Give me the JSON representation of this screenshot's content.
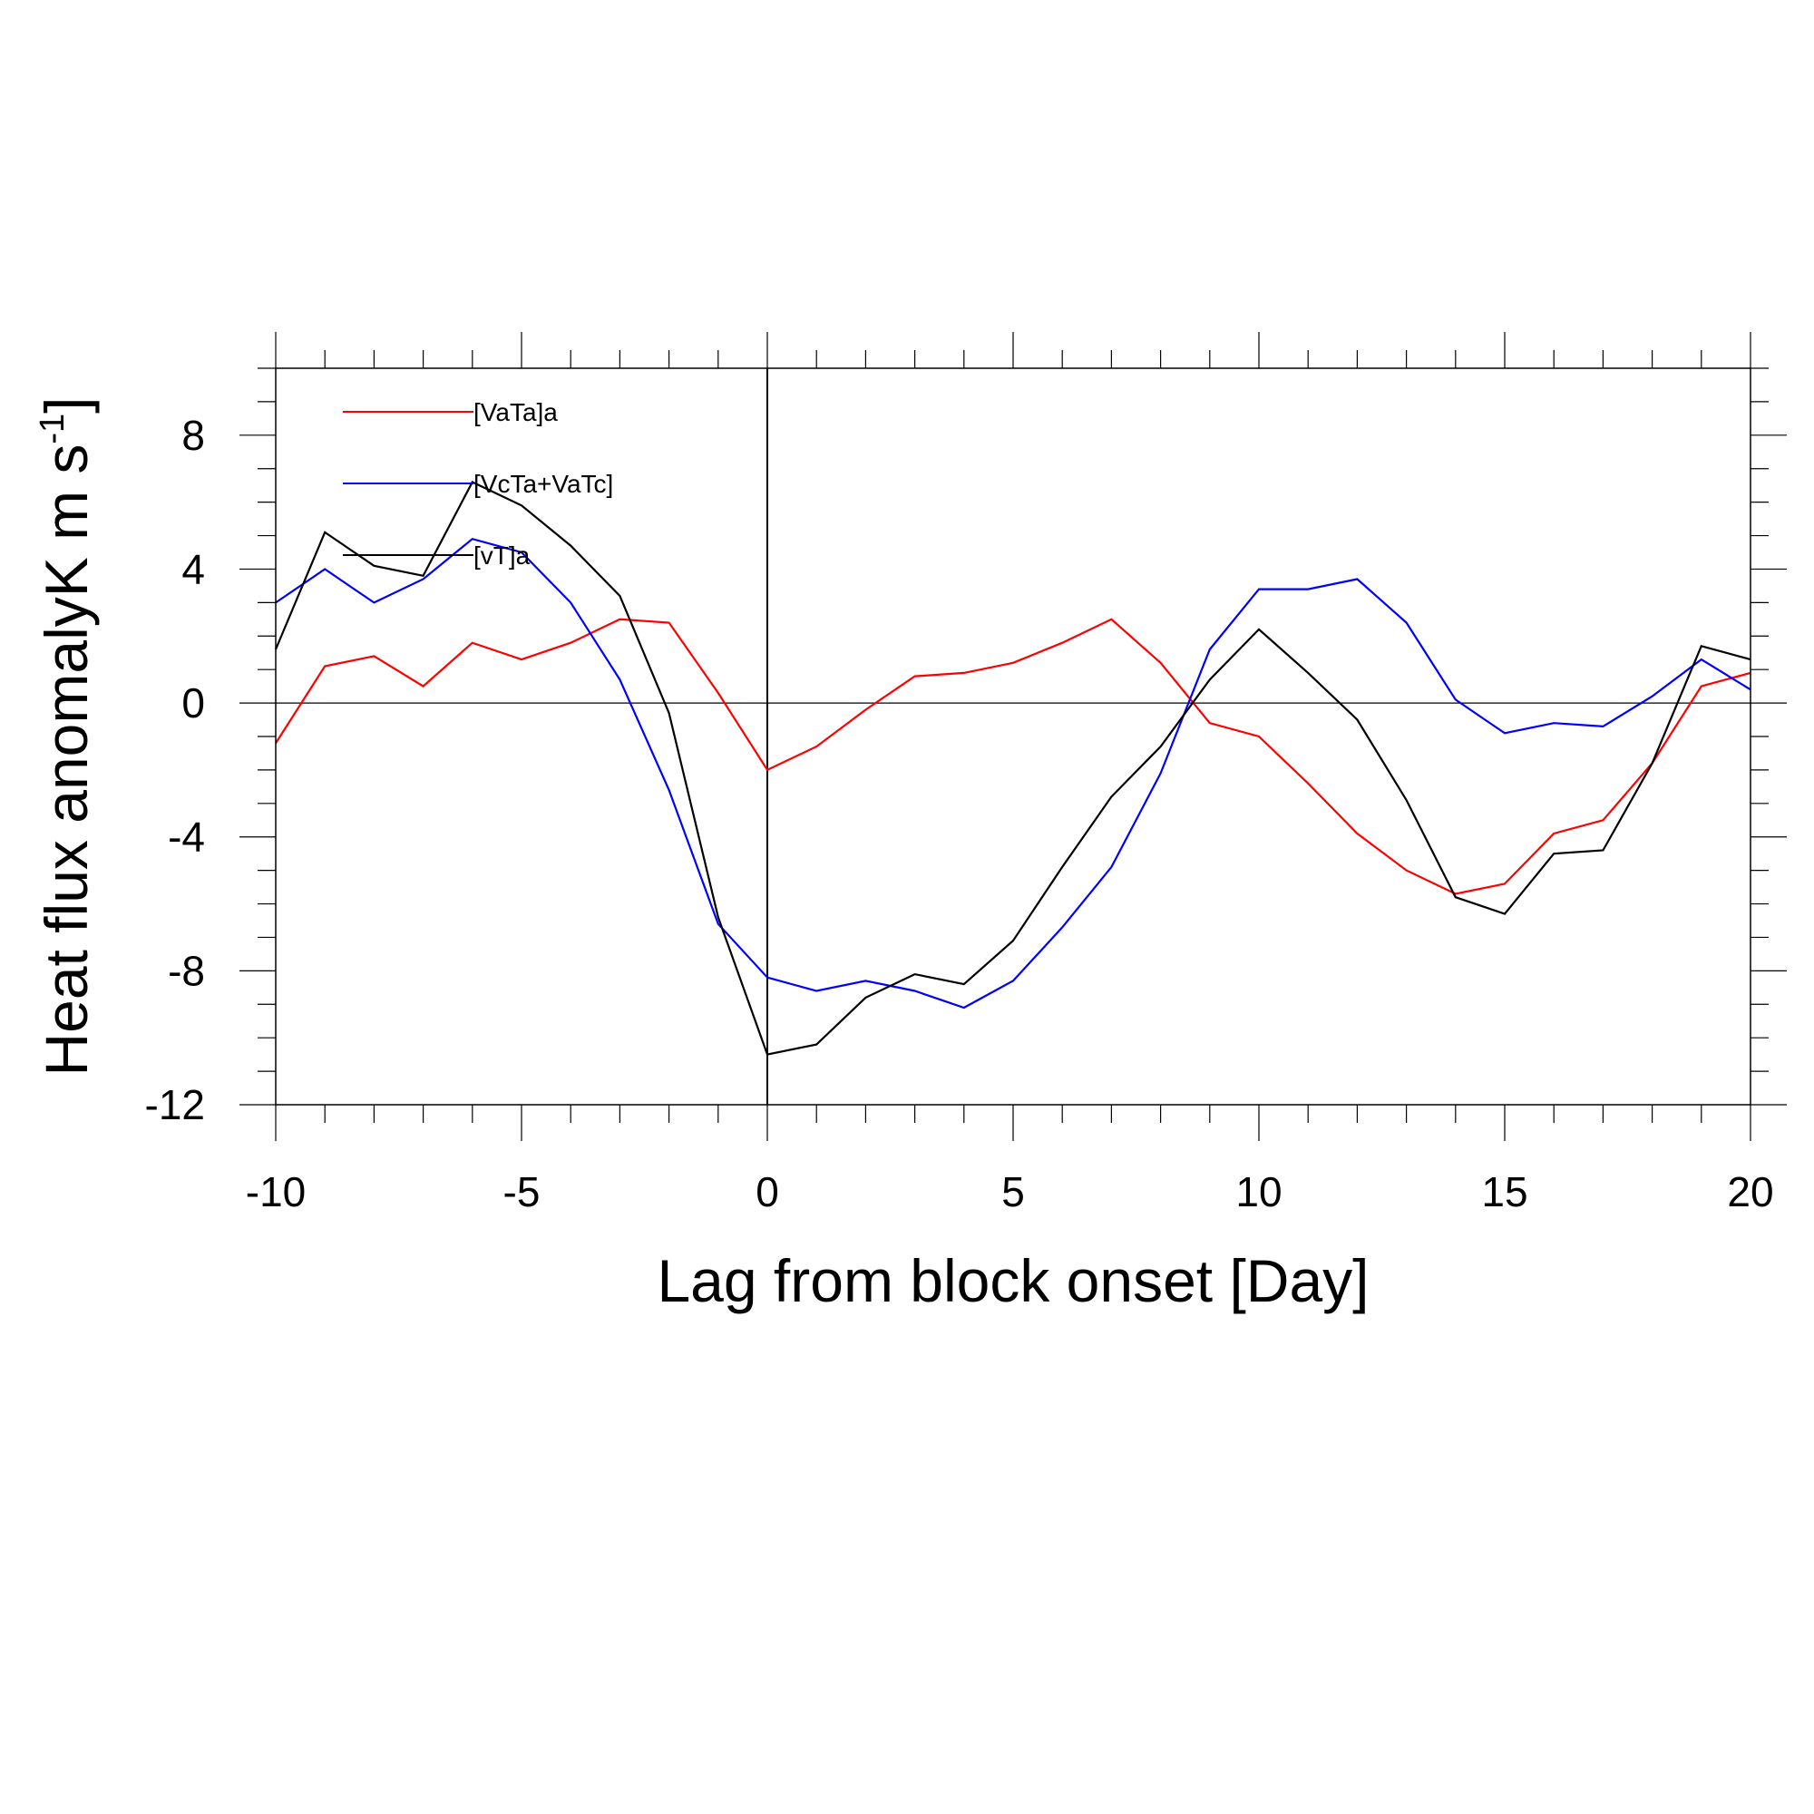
{
  "chart_data": {
    "type": "line",
    "title": "",
    "xlabel": "Lag from block onset [Day]",
    "ylabel": {
      "main": "Heat flux anomalyK m s",
      "superscript": "-1",
      "closing": "]"
    },
    "xlim": [
      -10,
      20
    ],
    "ylim": [
      -12,
      10
    ],
    "xticks": [
      -10,
      -5,
      0,
      5,
      10,
      15,
      20
    ],
    "yticks": [
      -12,
      -8,
      -4,
      0,
      4,
      8
    ],
    "x_minor_step": 1,
    "y_minor_step": 1,
    "grid": false,
    "zero_line": true,
    "vertical_line_x": 0,
    "legend_position": "top-left",
    "x": [
      -10,
      -9,
      -8,
      -7,
      -6,
      -5,
      -4,
      -3,
      -2,
      -1,
      0,
      1,
      2,
      3,
      4,
      5,
      6,
      7,
      8,
      9,
      10,
      11,
      12,
      13,
      14,
      15,
      16,
      17,
      18,
      19,
      20
    ],
    "series": [
      {
        "name": "[VaTa]a",
        "color": "#ff0000",
        "values": [
          -1.2,
          1.1,
          1.4,
          0.5,
          1.8,
          1.3,
          1.8,
          2.5,
          2.4,
          0.3,
          -2.0,
          -1.3,
          -0.2,
          0.8,
          0.9,
          1.2,
          1.8,
          2.5,
          1.2,
          -0.6,
          -1.0,
          -2.4,
          -3.9,
          -5.0,
          -5.7,
          -5.4,
          -3.9,
          -3.5,
          -1.8,
          0.5,
          0.9
        ]
      },
      {
        "name": "[VcTa+VaTc]",
        "color": "#0000ff",
        "values": [
          3.0,
          4.0,
          3.0,
          3.7,
          4.9,
          4.5,
          3.0,
          0.7,
          -2.6,
          -6.6,
          -8.2,
          -8.6,
          -8.3,
          -8.6,
          -9.1,
          -8.3,
          -6.7,
          -4.9,
          -2.1,
          1.6,
          3.4,
          3.4,
          3.7,
          2.4,
          0.1,
          -0.9,
          -0.6,
          -0.7,
          0.2,
          1.3,
          0.4
        ]
      },
      {
        "name": "[vT]a",
        "color": "#000000",
        "values": [
          1.6,
          5.1,
          4.1,
          3.8,
          6.6,
          5.9,
          4.7,
          3.2,
          -0.3,
          -6.4,
          -10.5,
          -10.2,
          -8.8,
          -8.1,
          -8.4,
          -7.1,
          -4.9,
          -2.8,
          -1.3,
          0.7,
          2.2,
          0.9,
          -0.5,
          -2.9,
          -5.8,
          -6.3,
          -4.5,
          -4.4,
          -1.8,
          1.7,
          1.3
        ]
      }
    ]
  }
}
